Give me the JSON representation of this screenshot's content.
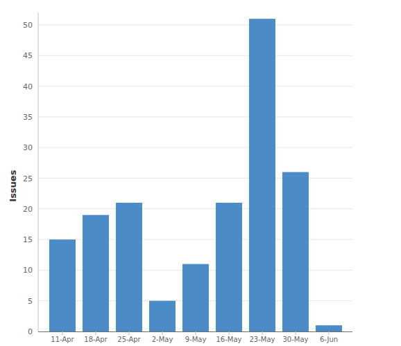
{
  "chart_data": {
    "type": "bar",
    "y_label": "Issues",
    "categories": [
      "11-Apr",
      "18-Apr",
      "25-Apr",
      "2-May",
      "9-May",
      "16-May",
      "23-May",
      "30-May",
      "6-Jun"
    ],
    "values": [
      15,
      19,
      21,
      5,
      11,
      21,
      51,
      26,
      1
    ],
    "color": "#4a8bc8",
    "ylim": [
      0,
      52
    ],
    "yticks": [
      0,
      5,
      10,
      15,
      20,
      25,
      30,
      35,
      40,
      45,
      50
    ],
    "grid": true
  }
}
